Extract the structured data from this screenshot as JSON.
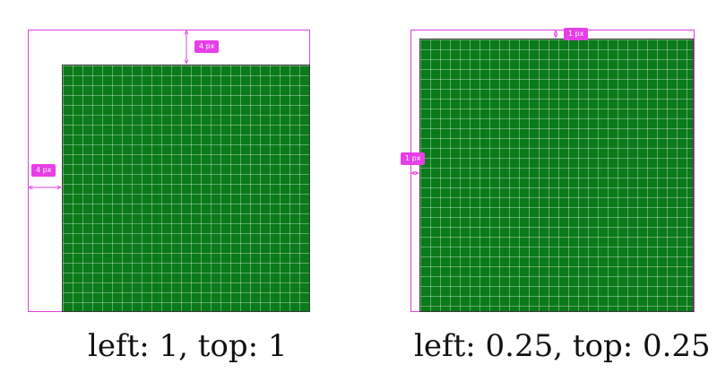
{
  "colors": {
    "measure": "#e040e0",
    "badge_bg": "#e83ee8",
    "grid_fill": "#0a7a1a"
  },
  "left_example": {
    "top_badge": "4 px",
    "left_badge": "4 px",
    "caption": "left: 1, top: 1"
  },
  "right_example": {
    "top_badge": "1 px",
    "left_badge": "1 px",
    "caption": "left: 0.25, top: 0.25"
  }
}
